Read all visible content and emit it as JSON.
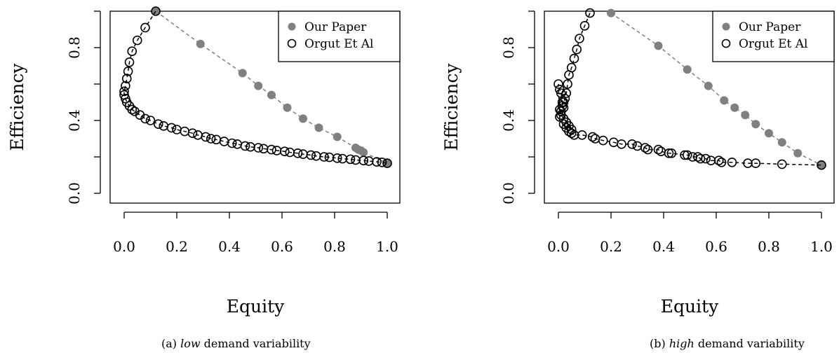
{
  "chart_data": [
    {
      "type": "scatter",
      "title": "",
      "xlabel": "Equity",
      "ylabel": "Efficiency",
      "xlim": [
        0,
        1
      ],
      "ylim": [
        0,
        1
      ],
      "xticks": [
        "0.0",
        "0.2",
        "0.4",
        "0.6",
        "0.8",
        "1.0"
      ],
      "yticks": [
        "0.0",
        "0.4",
        "0.8"
      ],
      "caption": {
        "prefix": "(a)",
        "emph": "low",
        "rest": " demand variability"
      },
      "legend_position": "top-right",
      "series": [
        {
          "name": "Our Paper",
          "color": "#808080",
          "marker": "filled-circle",
          "line": "dashed",
          "line_color": "#808080",
          "x": [
            0.12,
            0.29,
            0.45,
            0.51,
            0.56,
            0.62,
            0.68,
            0.74,
            0.81,
            0.88,
            0.89,
            0.9,
            0.91,
            1.0
          ],
          "y": [
            1.0,
            0.82,
            0.66,
            0.59,
            0.54,
            0.47,
            0.41,
            0.36,
            0.31,
            0.25,
            0.24,
            0.235,
            0.225,
            0.165
          ]
        },
        {
          "name": "Orgut Et Al",
          "color": "#000000",
          "marker": "open-circle",
          "line": "dashed",
          "line_color": "#000000",
          "x": [
            0.12,
            0.08,
            0.05,
            0.03,
            0.02,
            0.015,
            0.01,
            0.005,
            0.0,
            0.0,
            0.005,
            0.01,
            0.02,
            0.03,
            0.04,
            0.06,
            0.08,
            0.1,
            0.13,
            0.15,
            0.18,
            0.2,
            0.23,
            0.26,
            0.28,
            0.31,
            0.33,
            0.35,
            0.38,
            0.41,
            0.43,
            0.46,
            0.48,
            0.51,
            0.53,
            0.56,
            0.58,
            0.61,
            0.63,
            0.66,
            0.68,
            0.71,
            0.73,
            0.76,
            0.78,
            0.81,
            0.83,
            0.86,
            0.88,
            0.91,
            0.93,
            0.96,
            0.98,
            1.0
          ],
          "y": [
            1.0,
            0.91,
            0.84,
            0.78,
            0.72,
            0.67,
            0.63,
            0.59,
            0.56,
            0.54,
            0.52,
            0.5,
            0.48,
            0.46,
            0.45,
            0.43,
            0.41,
            0.4,
            0.38,
            0.37,
            0.36,
            0.35,
            0.34,
            0.33,
            0.32,
            0.31,
            0.3,
            0.295,
            0.285,
            0.275,
            0.27,
            0.26,
            0.255,
            0.25,
            0.245,
            0.24,
            0.235,
            0.23,
            0.225,
            0.22,
            0.215,
            0.21,
            0.205,
            0.2,
            0.198,
            0.193,
            0.19,
            0.187,
            0.183,
            0.18,
            0.177,
            0.173,
            0.17,
            0.165
          ]
        }
      ]
    },
    {
      "type": "scatter",
      "title": "",
      "xlabel": "Equity",
      "ylabel": "Efficiency",
      "xlim": [
        0,
        1
      ],
      "ylim": [
        0,
        1
      ],
      "xticks": [
        "0.0",
        "0.2",
        "0.4",
        "0.6",
        "0.8",
        "1.0"
      ],
      "yticks": [
        "0.0",
        "0.4",
        "0.8"
      ],
      "caption": {
        "prefix": "(b)",
        "emph": "high",
        "rest": " demand variability"
      },
      "legend_position": "top-right",
      "series": [
        {
          "name": "Our Paper",
          "color": "#808080",
          "marker": "filled-circle",
          "line": "dashed",
          "line_color": "#808080",
          "x": [
            0.2,
            0.38,
            0.49,
            0.57,
            0.63,
            0.67,
            0.71,
            0.75,
            0.8,
            0.85,
            0.91,
            1.0
          ],
          "y": [
            0.99,
            0.81,
            0.68,
            0.59,
            0.51,
            0.47,
            0.43,
            0.38,
            0.33,
            0.28,
            0.22,
            0.155
          ]
        },
        {
          "name": "Orgut Et Al",
          "color": "#000000",
          "marker": "open-circle",
          "line": "dashed",
          "line_color": "#000000",
          "x": [
            0.12,
            0.1,
            0.08,
            0.07,
            0.06,
            0.05,
            0.04,
            0.035,
            0.03,
            0.025,
            0.02,
            0.015,
            0.01,
            0.005,
            0.0,
            0.005,
            0.01,
            0.015,
            0.02,
            0.005,
            0.01,
            0.02,
            0.03,
            0.04,
            0.05,
            0.02,
            0.03,
            0.04,
            0.05,
            0.06,
            0.09,
            0.13,
            0.14,
            0.17,
            0.21,
            0.24,
            0.28,
            0.3,
            0.33,
            0.34,
            0.38,
            0.39,
            0.42,
            0.43,
            0.48,
            0.49,
            0.51,
            0.53,
            0.54,
            0.56,
            0.58,
            0.61,
            0.62,
            0.66,
            0.72,
            0.75,
            0.85,
            1.0
          ],
          "y": [
            0.99,
            0.92,
            0.85,
            0.79,
            0.74,
            0.69,
            0.65,
            0.6,
            0.55,
            0.52,
            0.5,
            0.48,
            0.45,
            0.42,
            0.6,
            0.57,
            0.55,
            0.5,
            0.47,
            0.46,
            0.43,
            0.41,
            0.39,
            0.37,
            0.35,
            0.38,
            0.36,
            0.34,
            0.33,
            0.32,
            0.32,
            0.31,
            0.3,
            0.29,
            0.28,
            0.27,
            0.27,
            0.26,
            0.25,
            0.24,
            0.24,
            0.23,
            0.22,
            0.22,
            0.21,
            0.21,
            0.2,
            0.2,
            0.19,
            0.19,
            0.18,
            0.18,
            0.17,
            0.17,
            0.165,
            0.165,
            0.16,
            0.155
          ]
        }
      ]
    }
  ]
}
